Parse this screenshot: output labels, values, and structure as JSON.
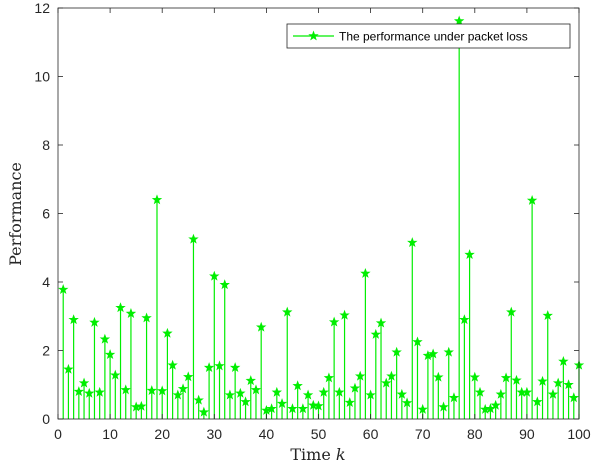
{
  "chart_data": {
    "type": "stem",
    "title": "",
    "xlabel": "Time",
    "xlabel_var": "k",
    "ylabel": "Performance",
    "xlim": [
      0,
      100
    ],
    "ylim": [
      0,
      12
    ],
    "xticks": [
      0,
      10,
      20,
      30,
      40,
      50,
      60,
      70,
      80,
      90,
      100
    ],
    "yticks": [
      0,
      2,
      4,
      6,
      8,
      10,
      12
    ],
    "grid": false,
    "legend_position": "top-right",
    "color": "#00ee00",
    "marker": "star",
    "series": [
      {
        "name": "The performance under packet loss",
        "x": [
          1,
          2,
          3,
          4,
          5,
          6,
          7,
          8,
          9,
          10,
          11,
          12,
          13,
          14,
          15,
          16,
          17,
          18,
          19,
          20,
          21,
          22,
          23,
          24,
          25,
          26,
          27,
          28,
          29,
          30,
          31,
          32,
          33,
          34,
          35,
          36,
          37,
          38,
          39,
          40,
          41,
          42,
          43,
          44,
          45,
          46,
          47,
          48,
          49,
          50,
          51,
          52,
          53,
          54,
          55,
          56,
          57,
          58,
          59,
          60,
          61,
          62,
          63,
          64,
          65,
          66,
          67,
          68,
          69,
          70,
          71,
          72,
          73,
          74,
          75,
          76,
          77,
          78,
          79,
          80,
          81,
          82,
          83,
          84,
          85,
          86,
          87,
          88,
          89,
          90,
          91,
          92,
          93,
          94,
          95,
          96,
          97,
          98,
          99,
          100
        ],
        "values": [
          3.78,
          1.45,
          2.9,
          0.8,
          1.05,
          0.75,
          2.82,
          0.78,
          2.33,
          1.88,
          1.28,
          3.25,
          0.85,
          3.08,
          0.35,
          0.37,
          2.95,
          0.83,
          6.4,
          0.82,
          2.5,
          1.57,
          0.7,
          0.88,
          1.23,
          5.25,
          0.55,
          0.2,
          1.5,
          4.17,
          1.55,
          3.92,
          0.7,
          1.5,
          0.75,
          0.5,
          1.12,
          0.85,
          2.68,
          0.25,
          0.3,
          0.78,
          0.45,
          3.12,
          0.3,
          0.97,
          0.3,
          0.7,
          0.4,
          0.38,
          0.78,
          1.2,
          2.83,
          0.78,
          3.03,
          0.48,
          0.9,
          1.25,
          4.25,
          0.7,
          2.47,
          2.8,
          1.05,
          1.25,
          1.95,
          0.72,
          0.47,
          5.15,
          2.25,
          0.28,
          1.85,
          1.9,
          1.22,
          0.35,
          1.95,
          0.62,
          11.62,
          2.9,
          4.8,
          1.22,
          0.78,
          0.28,
          0.3,
          0.4,
          0.72,
          1.2,
          3.12,
          1.13,
          0.78,
          0.78,
          6.38,
          0.5,
          1.1,
          3.02,
          0.72,
          1.05,
          1.68,
          1.0,
          0.62,
          1.57
        ]
      }
    ]
  }
}
